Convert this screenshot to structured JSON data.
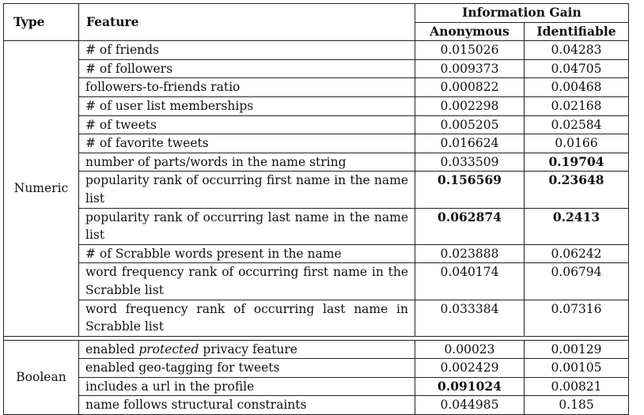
{
  "header": {
    "type": "Type",
    "feature": "Feature",
    "information_gain": "Information Gain",
    "anonymous": "Anonymous",
    "identifiable": "Identifiable"
  },
  "groups": [
    {
      "type": "Numeric",
      "rows": [
        {
          "feature": "# of friends",
          "anonymous": "0.015026",
          "identifiable": "0.04283",
          "bold_anon": false,
          "bold_iden": false
        },
        {
          "feature": "# of followers",
          "anonymous": "0.009373",
          "identifiable": "0.04705",
          "bold_anon": false,
          "bold_iden": false
        },
        {
          "feature": "followers-to-friends ratio",
          "anonymous": "0.000822",
          "identifiable": "0.00468",
          "bold_anon": false,
          "bold_iden": false
        },
        {
          "feature": "# of user list memberships",
          "anonymous": "0.002298",
          "identifiable": "0.02168",
          "bold_anon": false,
          "bold_iden": false
        },
        {
          "feature": "# of tweets",
          "anonymous": "0.005205",
          "identifiable": "0.02584",
          "bold_anon": false,
          "bold_iden": false
        },
        {
          "feature": "# of favorite tweets",
          "anonymous": "0.016624",
          "identifiable": "0.0166",
          "bold_anon": false,
          "bold_iden": false
        },
        {
          "feature": "number of parts/words in the name string",
          "anonymous": "0.033509",
          "identifiable": "0.19704",
          "bold_anon": false,
          "bold_iden": true
        },
        {
          "feature": "popularity rank of occurring first name in the name list",
          "anonymous": "0.156569",
          "identifiable": "0.23648",
          "bold_anon": true,
          "bold_iden": true
        },
        {
          "feature": "popularity rank of occurring last name in the name list",
          "anonymous": "0.062874",
          "identifiable": "0.2413",
          "bold_anon": true,
          "bold_iden": true
        },
        {
          "feature": "# of Scrabble words present in the name",
          "anonymous": "0.023888",
          "identifiable": "0.06242",
          "bold_anon": false,
          "bold_iden": false
        },
        {
          "feature": "word frequency rank of occurring first name in the Scrabble list",
          "anonymous": "0.040174",
          "identifiable": "0.06794",
          "bold_anon": false,
          "bold_iden": false
        },
        {
          "feature": "word frequency rank of occurring last name in Scrabble list",
          "anonymous": "0.033384",
          "identifiable": "0.07316",
          "bold_anon": false,
          "bold_iden": false
        }
      ]
    },
    {
      "type": "Boolean",
      "rows": [
        {
          "feature_before": "enabled ",
          "feature_em": "protected",
          "feature_after": " privacy feature",
          "anonymous": "0.00023",
          "identifiable": "0.00129",
          "bold_anon": false,
          "bold_iden": false
        },
        {
          "feature": "enabled geo-tagging for tweets",
          "anonymous": "0.002429",
          "identifiable": "0.00105",
          "bold_anon": false,
          "bold_iden": false
        },
        {
          "feature": "includes a url in the profile",
          "anonymous": "0.091024",
          "identifiable": "0.00821",
          "bold_anon": true,
          "bold_iden": false
        },
        {
          "feature": "name follows structural constraints",
          "anonymous": "0.044985",
          "identifiable": "0.185",
          "bold_anon": false,
          "bold_iden": false
        }
      ]
    }
  ]
}
